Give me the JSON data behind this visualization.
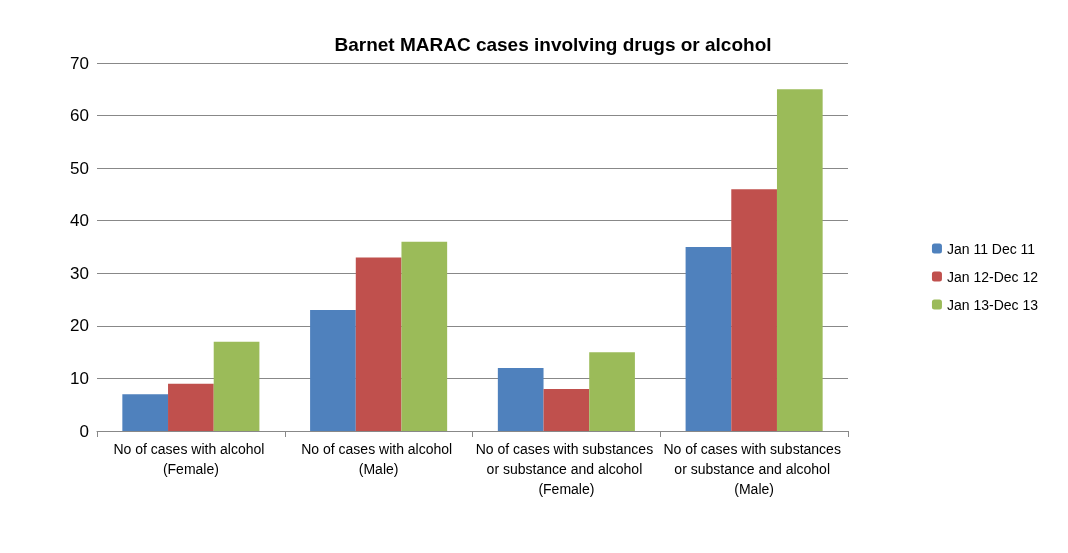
{
  "chart_data": {
    "type": "bar",
    "title": "Barnet MARAC cases involving drugs or alcohol",
    "categories": [
      "No of cases with alcohol (Female)",
      "No of cases with alcohol (Male)",
      "No of cases with substances or substance and alcohol (Female)",
      "No of cases with substances or substance and alcohol (Male)"
    ],
    "series": [
      {
        "name": "Jan 11 Dec 11",
        "color": "#4f81bd",
        "values": [
          7,
          23,
          12,
          35
        ]
      },
      {
        "name": "Jan 12-Dec 12",
        "color": "#c0504d",
        "values": [
          9,
          33,
          8,
          46
        ]
      },
      {
        "name": "Jan 13-Dec 13",
        "color": "#9bbb59",
        "values": [
          17,
          36,
          15,
          65
        ]
      }
    ],
    "ylim": [
      0,
      70
    ],
    "yticks": [
      0,
      10,
      20,
      30,
      40,
      50,
      60,
      70
    ],
    "grid": "y",
    "legend": "right"
  }
}
